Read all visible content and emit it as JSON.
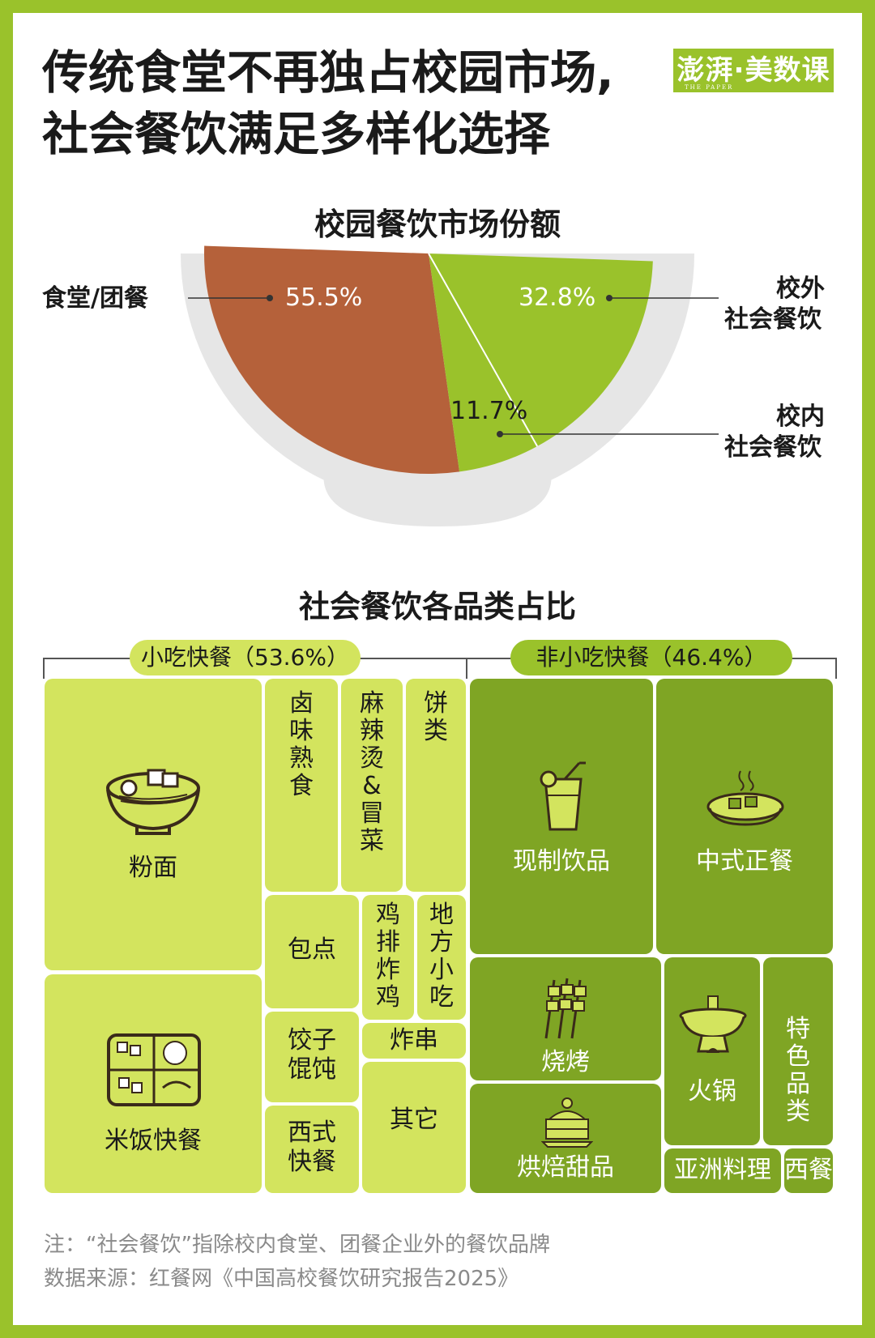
{
  "header": {
    "title_line1": "传统食堂不再独占校园市场,",
    "title_line2": "社会餐饮满足多样化选择",
    "brand": "澎湃·美数课",
    "brand_sub": "THE PAPER"
  },
  "colors": {
    "frame": "#9ac22b",
    "canteen": "#b5613a",
    "social_green": "#9ac22b",
    "light_tile": "#d3e45e",
    "dark_tile": "#7fa524",
    "bowl": "#e6e6e6"
  },
  "chart_data": [
    {
      "type": "pie",
      "title": "校园餐饮市场份额",
      "slices": [
        {
          "label": "食堂/团餐",
          "value": 55.5,
          "display": "55.5%"
        },
        {
          "label": "校外社会餐饮",
          "value": 32.8,
          "display": "32.8%"
        },
        {
          "label": "校内社会餐饮",
          "value": 11.7,
          "display": "11.7%"
        }
      ],
      "legend_labels": {
        "canteen": "食堂/团餐",
        "outside_1": "校外",
        "outside_2": "社会餐饮",
        "inside_1": "校内",
        "inside_2": "社会餐饮"
      }
    },
    {
      "type": "treemap",
      "title": "社会餐饮各品类占比",
      "groups": [
        {
          "name": "小吃快餐（53.6%）",
          "value": 53.6,
          "categories": [
            "粉面",
            "米饭快餐",
            "卤味熟食",
            "麻辣烫&冒菜",
            "饼类",
            "包点",
            "鸡排炸鸡",
            "地方小吃",
            "饺子馄饨",
            "炸串",
            "西式快餐",
            "其它"
          ]
        },
        {
          "name": "非小吃快餐（46.4%）",
          "value": 46.4,
          "categories": [
            "现制饮品",
            "中式正餐",
            "烧烤",
            "烘焙甜品",
            "火锅",
            "特色品类",
            "亚洲料理",
            "西餐"
          ]
        }
      ]
    }
  ],
  "treemap_labels": {
    "fenmian": "粉面",
    "mifan": "米饭快餐",
    "luwei": "卤味熟食",
    "malatang": "麻辣烫&冒菜",
    "binglei": "饼类",
    "baodian": "包点",
    "jipai": "鸡排炸鸡",
    "difang": "地方小吃",
    "jiaozi_1": "饺子",
    "jiaozi_2": "馄饨",
    "zhachuan": "炸串",
    "xishi_1": "西式",
    "xishi_2": "快餐",
    "qita": "其它",
    "xianzhi": "现制饮品",
    "zhongshi": "中式正餐",
    "shaokao": "烧烤",
    "hongbei": "烘焙甜品",
    "huoguo": "火锅",
    "tese": "特色品类",
    "yazhou": "亚洲料理",
    "xican": "西餐"
  },
  "footer": {
    "note": "注：“社会餐饮”指除校内食堂、团餐企业外的餐饮品牌",
    "source": "数据来源：红餐网《中国高校餐饮研究报告2025》"
  }
}
